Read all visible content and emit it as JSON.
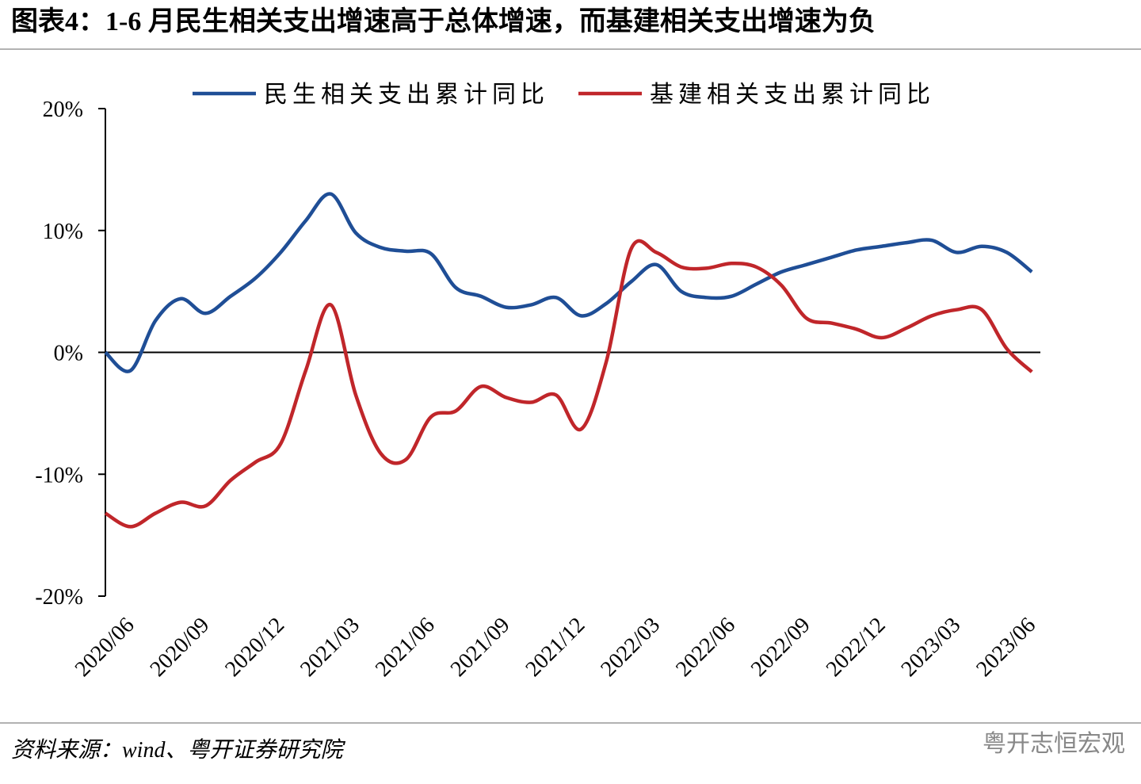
{
  "chart_data": {
    "type": "line",
    "title": "图表4：1-6 月民生相关支出增速高于总体增速，而基建相关支出增速为负",
    "categories": [
      null,
      "2020/06",
      null,
      null,
      "2020/09",
      null,
      null,
      "2020/12",
      null,
      null,
      "2021/03",
      null,
      null,
      "2021/06",
      null,
      null,
      "2021/09",
      null,
      null,
      "2021/12",
      null,
      null,
      "2022/03",
      null,
      null,
      "2022/06",
      null,
      null,
      "2022/09",
      null,
      null,
      "2022/12",
      null,
      null,
      "2023/03",
      null,
      null,
      "2023/06"
    ],
    "series": [
      {
        "name": "民生相关支出累计同比",
        "color": "#1f4e96",
        "values": [
          0,
          -1.5,
          2.6,
          4.4,
          3.2,
          4.6,
          6.1,
          8.2,
          10.8,
          13.0,
          9.8,
          8.6,
          8.3,
          8.1,
          5.3,
          4.6,
          3.7,
          3.9,
          4.5,
          3.0,
          4.0,
          5.8,
          7.2,
          5.0,
          4.5,
          4.6,
          5.6,
          6.6,
          7.2,
          7.8,
          8.4,
          8.7,
          9.0,
          9.2,
          8.2,
          8.7,
          8.2,
          6.6
        ]
      },
      {
        "name": "基建相关支出累计同比",
        "color": "#c0262a",
        "values": [
          -13.2,
          -14.3,
          -13.2,
          -12.3,
          -12.6,
          -10.5,
          -9.0,
          -7.5,
          -1.5,
          3.9,
          -3.5,
          -8.3,
          -8.8,
          -5.3,
          -4.8,
          -2.8,
          -3.7,
          -4.1,
          -3.5,
          -6.3,
          -0.8,
          8.5,
          8.2,
          7.0,
          6.9,
          7.3,
          7.0,
          5.5,
          2.8,
          2.4,
          1.9,
          1.2,
          2.0,
          3.0,
          3.5,
          3.5,
          0.3,
          -1.6
        ]
      }
    ],
    "ylim": [
      -20,
      20
    ],
    "yticks": [
      {
        "value": 20,
        "label": "20%"
      },
      {
        "value": 10,
        "label": "10%"
      },
      {
        "value": 0,
        "label": "0%"
      },
      {
        "value": -10,
        "label": "-10%"
      },
      {
        "value": -20,
        "label": "-20%"
      }
    ],
    "source": "资料来源：wind、粤开证券研究院",
    "watermark": "粤开志恒宏观"
  }
}
